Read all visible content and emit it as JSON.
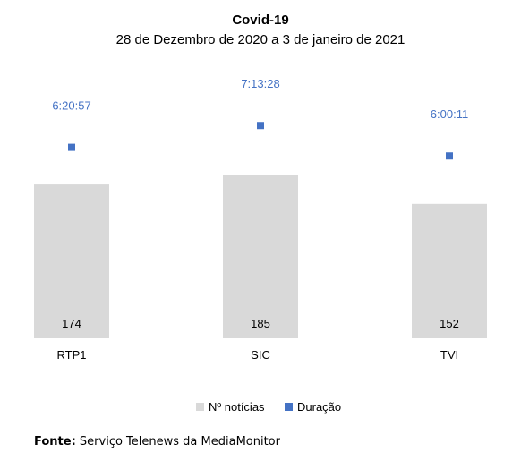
{
  "chart_data": {
    "type": "bar",
    "title": "Covid-19",
    "subtitle": "28 de Dezembro de 2020 a 3 de janeiro de 2021",
    "categories": [
      "RTP1",
      "SIC",
      "TVI"
    ],
    "series": [
      {
        "name": "Nº notícias",
        "kind": "bar",
        "color": "#d9d9d9",
        "values": [
          174,
          185,
          152
        ],
        "labels": [
          "174",
          "185",
          "152"
        ]
      },
      {
        "name": "Duração",
        "kind": "marker",
        "color": "#4472c4",
        "values": [
          "6:20:57",
          "7:13:28",
          "6:00:11"
        ],
        "labels": [
          "6:20:57",
          "7:13:28",
          "6:00:11"
        ]
      }
    ],
    "legend_position": "bottom",
    "grid": false,
    "label_color": "#4472c4"
  },
  "source": {
    "label": "Fonte:",
    "text": "Serviço Telenews da MediaMonitor"
  }
}
